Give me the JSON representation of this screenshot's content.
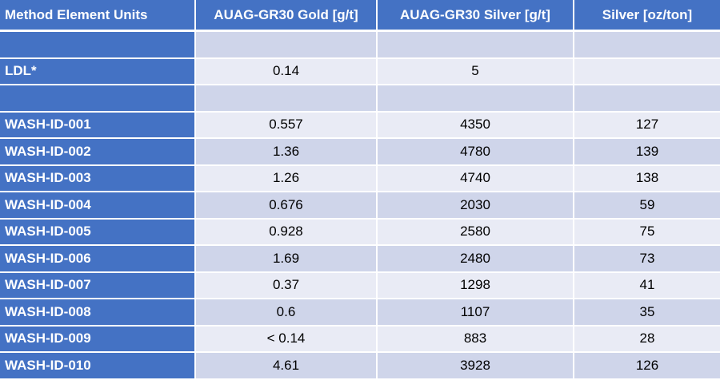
{
  "headers": [
    "Method Element Units",
    "AUAG-GR30 Gold [g/t]",
    "AUAG-GR30 Silver [g/t]",
    "Silver [oz/ton]"
  ],
  "rows": [
    [
      "",
      "",
      "",
      ""
    ],
    [
      "LDL*",
      "0.14",
      "5",
      ""
    ],
    [
      "",
      "",
      "",
      ""
    ],
    [
      "WASH-ID-001",
      "0.557",
      "4350",
      "127"
    ],
    [
      "WASH-ID-002",
      "1.36",
      "4780",
      "139"
    ],
    [
      "WASH-ID-003",
      "1.26",
      "4740",
      "138"
    ],
    [
      "WASH-ID-004",
      "0.676",
      "2030",
      "59"
    ],
    [
      "WASH-ID-005",
      "0.928",
      "2580",
      "75"
    ],
    [
      "WASH-ID-006",
      "1.69",
      "2480",
      "73"
    ],
    [
      "WASH-ID-007",
      "0.37",
      "1298",
      "41"
    ],
    [
      "WASH-ID-008",
      "0.6",
      "1107",
      "35"
    ],
    [
      "WASH-ID-009",
      "< 0.14",
      "883",
      "28"
    ],
    [
      "WASH-ID-010",
      "4.61",
      "3928",
      "126"
    ]
  ],
  "colors": {
    "header_bg": "#4472c4",
    "row_band_dark": "#cfd5ea",
    "row_band_light": "#e9ebf5",
    "label_text": "#ffffff"
  }
}
